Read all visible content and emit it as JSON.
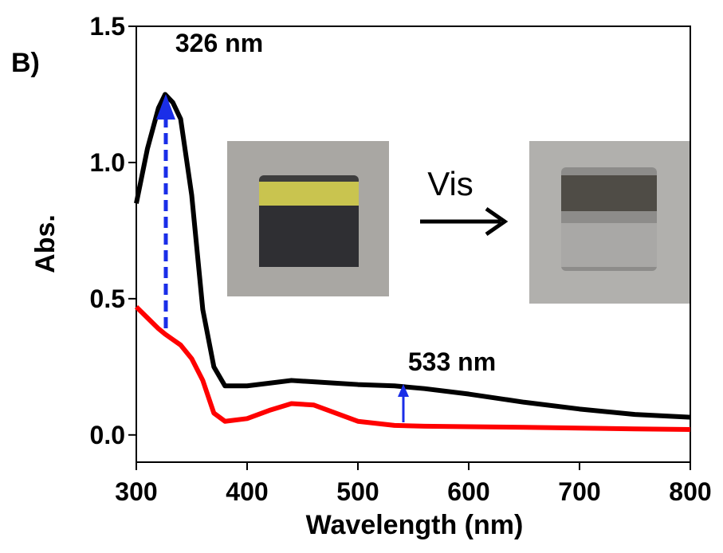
{
  "chart_data": {
    "type": "line",
    "panel_label": "B)",
    "x_label": "Wavelength (nm)",
    "y_label": "Abs.",
    "annotations": [
      "326 nm",
      "533 nm",
      "Vis"
    ],
    "x": [
      300,
      310,
      320,
      326,
      333,
      340,
      350,
      360,
      370,
      380,
      400,
      420,
      440,
      460,
      480,
      500,
      533,
      560,
      600,
      650,
      700,
      750,
      800
    ],
    "series": [
      {
        "color": "#000000",
        "values": [
          0.85,
          1.05,
          1.2,
          1.25,
          1.22,
          1.16,
          0.88,
          0.46,
          0.25,
          0.18,
          0.18,
          0.19,
          0.2,
          0.195,
          0.19,
          0.185,
          0.18,
          0.17,
          0.15,
          0.12,
          0.095,
          0.075,
          0.065
        ]
      },
      {
        "color": "#ff0000",
        "values": [
          0.47,
          0.43,
          0.39,
          0.37,
          0.35,
          0.33,
          0.28,
          0.2,
          0.08,
          0.05,
          0.06,
          0.09,
          0.115,
          0.11,
          0.08,
          0.05,
          0.035,
          0.032,
          0.03,
          0.028,
          0.025,
          0.022,
          0.02
        ]
      }
    ],
    "xlim": [
      300,
      800
    ],
    "ylim": [
      -0.1,
      1.5
    ],
    "xticks": [
      300,
      400,
      500,
      600,
      700,
      800
    ],
    "yticks": [
      {
        "value": 0,
        "label": "0.0"
      },
      0.5,
      {
        "value": 1,
        "label": "1.0"
      },
      1.5
    ]
  }
}
